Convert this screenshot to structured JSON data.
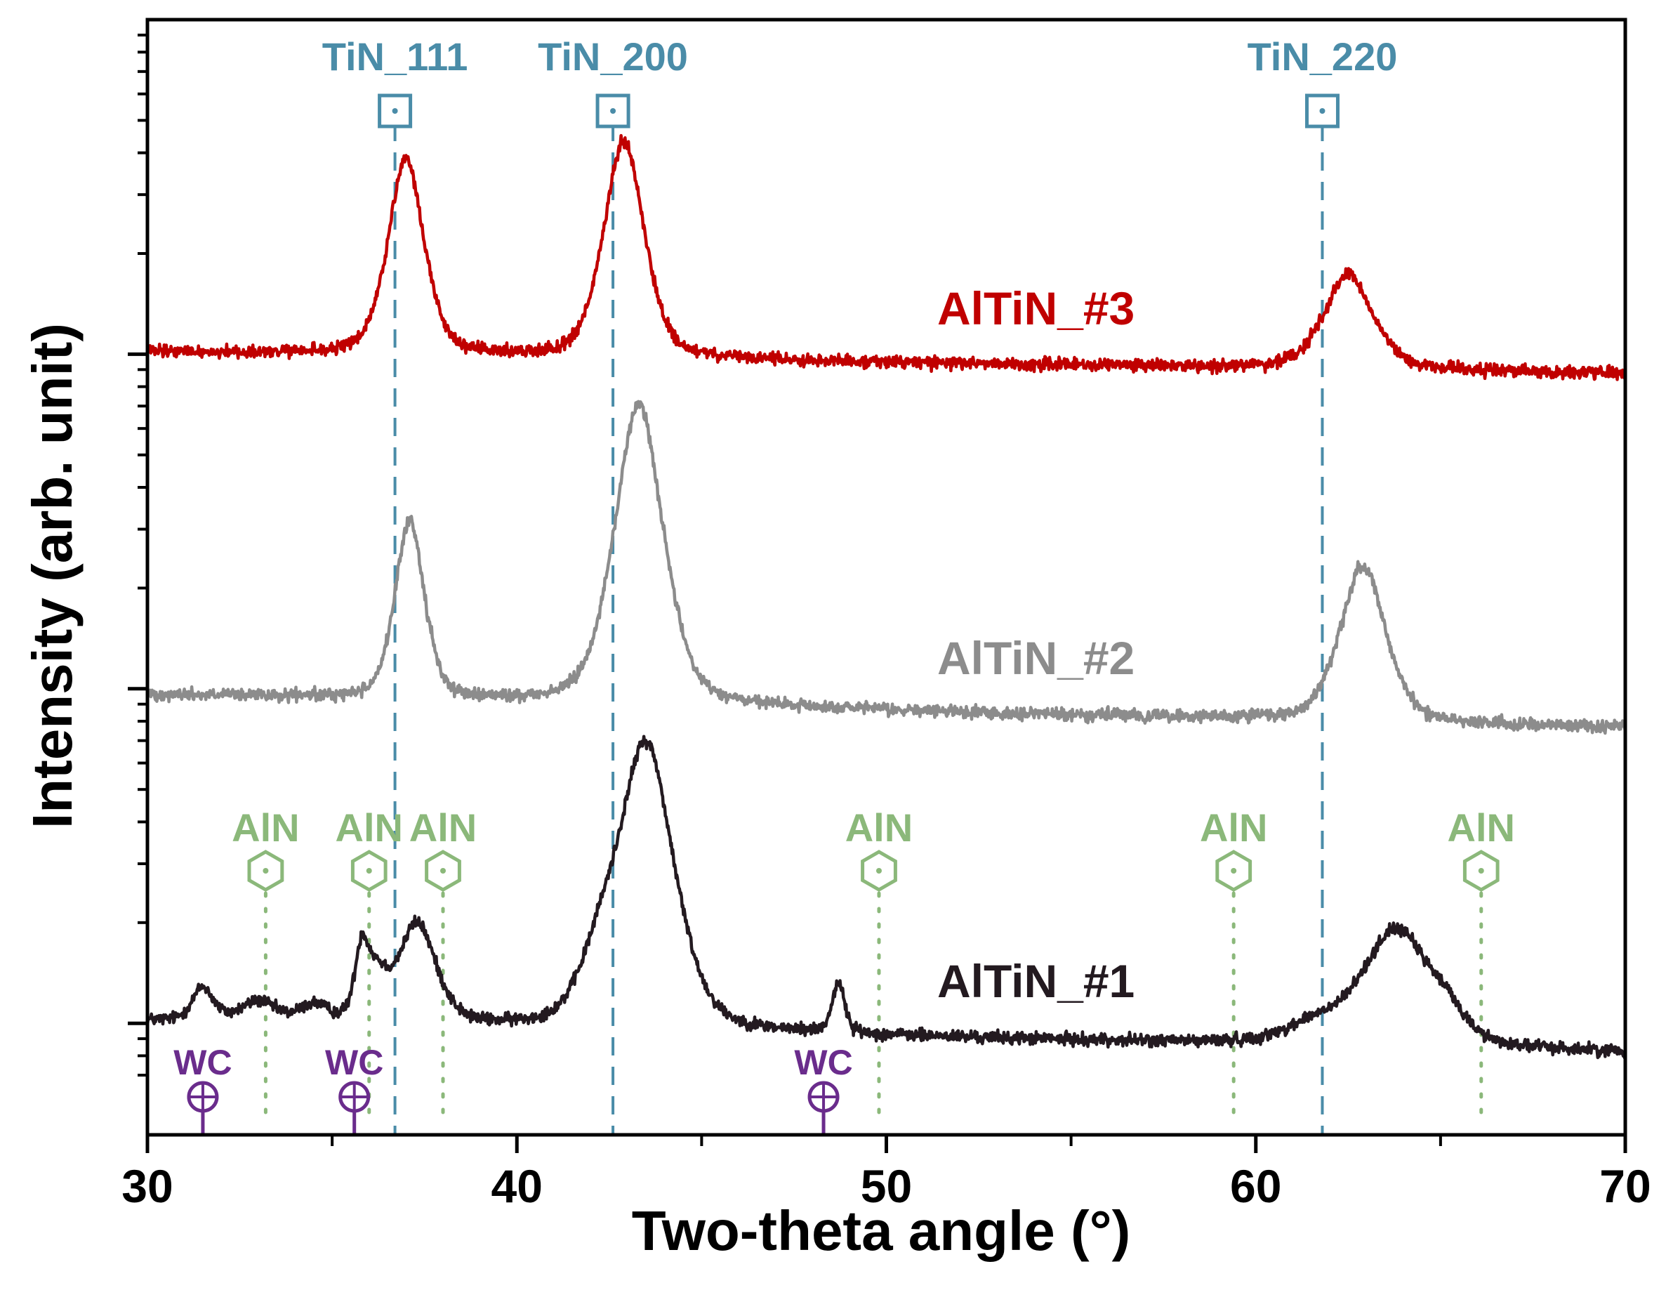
{
  "chart_data": {
    "type": "line",
    "title": "",
    "xlabel": "Two-theta angle (°)",
    "ylabel": "Intensity (arb. unit)",
    "xlim": [
      30,
      70
    ],
    "ylim": [
      0,
      100
    ],
    "x_ticks": [
      30,
      40,
      50,
      60,
      70
    ],
    "y_ticks": [
      10,
      40,
      70
    ],
    "y_tick_labels_visible": false,
    "series": [
      {
        "name": "AlTiN_#1",
        "color": "#231a20",
        "baseline_start": 10.2,
        "baseline_end": 7.4,
        "noise": 0.35,
        "peaks": [
          {
            "center": 31.5,
            "height": 3.0,
            "width": 0.3
          },
          {
            "center": 33.0,
            "height": 1.8,
            "width": 0.5
          },
          {
            "center": 34.5,
            "height": 1.5,
            "width": 0.4
          },
          {
            "center": 35.8,
            "height": 6.0,
            "width": 0.2
          },
          {
            "center": 36.2,
            "height": 3.5,
            "width": 0.3
          },
          {
            "center": 37.3,
            "height": 9.0,
            "width": 0.55
          },
          {
            "center": 42.2,
            "height": 4.0,
            "width": 0.6
          },
          {
            "center": 43.5,
            "height": 25.5,
            "width": 0.8
          },
          {
            "center": 48.7,
            "height": 4.5,
            "width": 0.18
          },
          {
            "center": 61.5,
            "height": 1.5,
            "width": 0.8
          },
          {
            "center": 63.8,
            "height": 10.5,
            "width": 1.0
          },
          {
            "center": 65.2,
            "height": 1.5,
            "width": 0.5
          }
        ]
      },
      {
        "name": "AlTiN_#2",
        "color": "#8c8c8c",
        "baseline_start": 39.5,
        "baseline_end": 36.5,
        "noise": 0.35,
        "peaks": [
          {
            "center": 37.1,
            "height": 16.0,
            "width": 0.42
          },
          {
            "center": 43.3,
            "height": 27.0,
            "width": 0.7
          },
          {
            "center": 62.9,
            "height": 14.0,
            "width": 0.65
          }
        ]
      },
      {
        "name": "AlTiN_#3",
        "color": "#c00000",
        "baseline_start": 70.2,
        "baseline_end": 68.3,
        "noise": 0.35,
        "peaks": [
          {
            "center": 37.0,
            "height": 17.5,
            "width": 0.52
          },
          {
            "center": 42.9,
            "height": 19.5,
            "width": 0.58
          },
          {
            "center": 62.5,
            "height": 8.5,
            "width": 0.7
          }
        ]
      }
    ],
    "reference_markers": [
      {
        "phase": "TiN",
        "color": "#4a8ca8",
        "symbol": "square",
        "line_style": "dashed",
        "markers": [
          {
            "x": 36.7,
            "label": "TiN_111"
          },
          {
            "x": 42.6,
            "label": "TiN_200"
          },
          {
            "x": 61.8,
            "label": "TiN_220"
          }
        ]
      },
      {
        "phase": "AlN",
        "color": "#8bb87a",
        "symbol": "hexagon",
        "line_style": "dotted",
        "markers": [
          {
            "x": 33.2,
            "label": "AlN"
          },
          {
            "x": 36.0,
            "label": "AlN"
          },
          {
            "x": 38.0,
            "label": "AlN"
          },
          {
            "x": 49.8,
            "label": "AlN"
          },
          {
            "x": 59.4,
            "label": "AlN"
          },
          {
            "x": 66.1,
            "label": "AlN"
          }
        ]
      },
      {
        "phase": "WC",
        "color": "#6a2c8c",
        "symbol": "circle-cross",
        "line_style": "solid",
        "markers": [
          {
            "x": 31.5,
            "label": "WC"
          },
          {
            "x": 35.6,
            "label": "WC"
          },
          {
            "x": 48.3,
            "label": "WC"
          }
        ]
      }
    ],
    "series_labels": [
      {
        "text": "AlTiN_#3",
        "color": "#c00000"
      },
      {
        "text": "AlTiN_#2",
        "color": "#8c8c8c"
      },
      {
        "text": "AlTiN_#1",
        "color": "#231a20"
      }
    ]
  }
}
